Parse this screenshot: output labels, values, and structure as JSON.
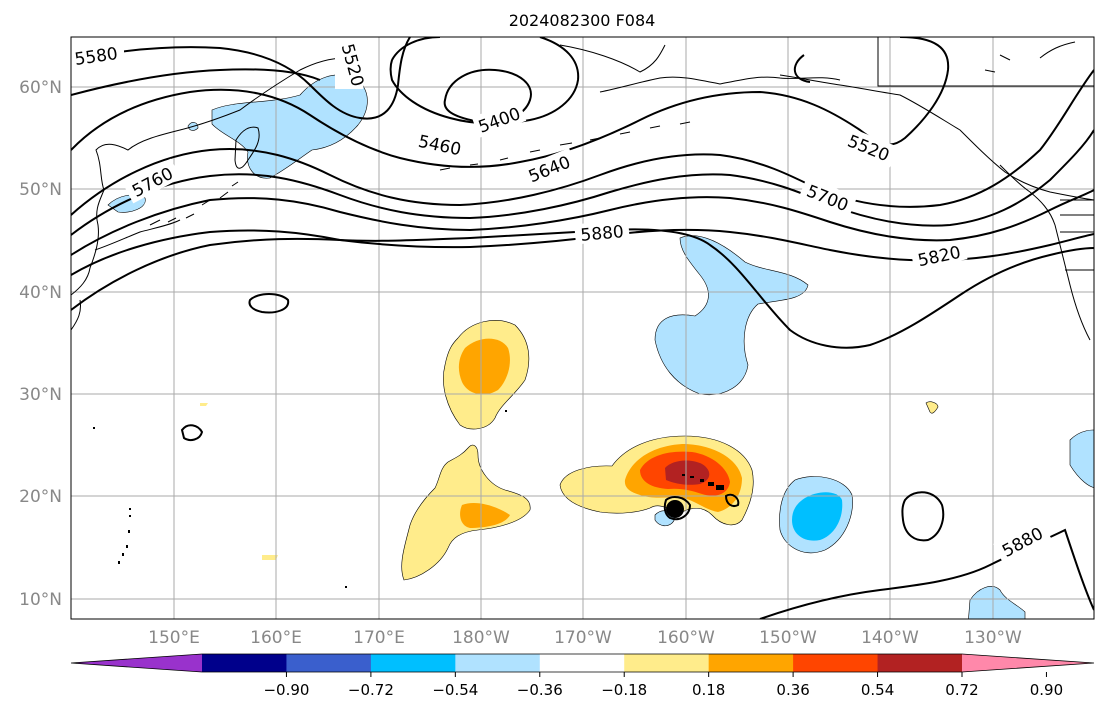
{
  "title": "2024082300 F084",
  "lat_labels": [
    "60°N",
    "50°N",
    "40°N",
    "30°N",
    "20°N",
    "10°N"
  ],
  "lon_labels": [
    "150°E",
    "160°E",
    "170°E",
    "180°W",
    "170°W",
    "160°W",
    "150°W",
    "140°W",
    "130°W"
  ],
  "contour_labels": [
    "5580",
    "5520",
    "5400",
    "5460",
    "5640",
    "5760",
    "5700",
    "5520",
    "5880",
    "5820",
    "5880"
  ],
  "colorbar": {
    "ticks": [
      "−0.90",
      "−0.72",
      "−0.54",
      "−0.36",
      "−0.18",
      "0.18",
      "0.36",
      "0.54",
      "0.72",
      "0.90"
    ],
    "colors": [
      "#9932cc",
      "#00008b",
      "#3a5fcd",
      "#00bfff",
      "#b0e2ff",
      "#ffffff",
      "#ffec8b",
      "#ffa500",
      "#ff4500",
      "#b22222",
      "#ff88aa"
    ]
  },
  "colors": {
    "text": "#000000",
    "axis_label": "#888888",
    "grid": "#aaaaaa"
  }
}
